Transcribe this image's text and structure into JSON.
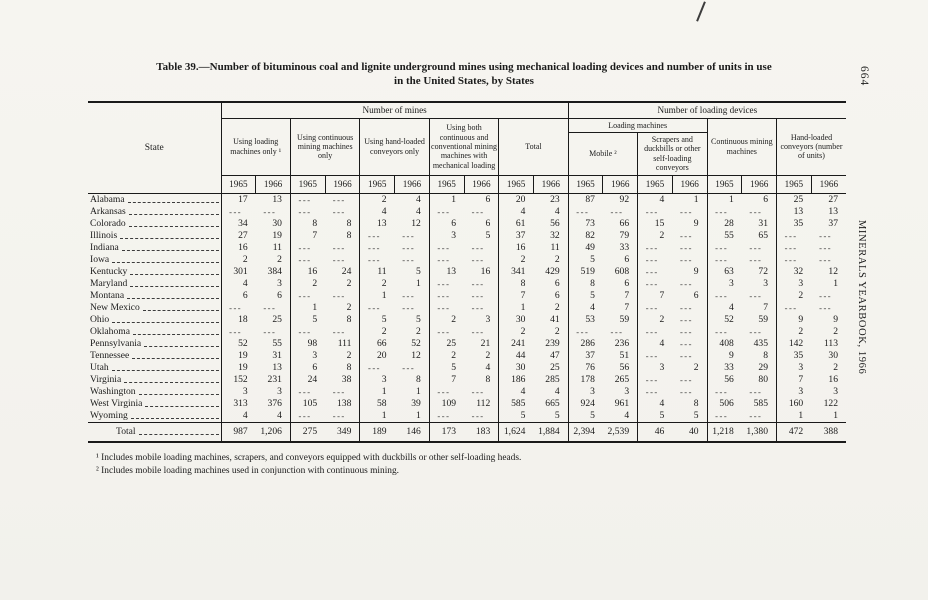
{
  "page": {
    "side_page_number": "664",
    "side_title": "MINERALS YEARBOOK, 1966"
  },
  "title": {
    "line1": "Table 39.—Number of bituminous coal and lignite underground mines using mechanical loading devices and number of units in use",
    "line2": "in the United States, by States"
  },
  "table": {
    "group_headers": [
      "Number of mines",
      "Number of loading devices"
    ],
    "col_headers": {
      "state": "State",
      "mines": [
        "Using loading machines only ¹",
        "Using continuous mining machines only",
        "Using hand-loaded conveyors only",
        "Using both continuous and conventional mining machines with mechanical loading",
        "Total"
      ],
      "loading_machines_group": "Loading machines",
      "loading_machines": [
        "Mobile ²",
        "Scrapers and duckbills or other self-loading conveyors"
      ],
      "continuous": "Continuous mining machines",
      "hand_loaded": "Hand-loaded conveyors (number of units)"
    },
    "years": [
      "1965",
      "1966",
      "1965",
      "1966",
      "1965",
      "1966",
      "1965",
      "1966",
      "1965",
      "1966",
      "1965",
      "1966",
      "1965",
      "1966",
      "1965",
      "1966",
      "1965",
      "1966"
    ],
    "rows": [
      {
        "state": "Alabama",
        "values": [
          "17",
          "13",
          "---",
          "---",
          "2",
          "4",
          "1",
          "6",
          "20",
          "23",
          "87",
          "92",
          "4",
          "1",
          "1",
          "6",
          "25",
          "27"
        ]
      },
      {
        "state": "Arkansas",
        "values": [
          "---",
          "---",
          "---",
          "---",
          "4",
          "4",
          "---",
          "---",
          "4",
          "4",
          "---",
          "---",
          "---",
          "---",
          "---",
          "---",
          "13",
          "13"
        ]
      },
      {
        "state": "Colorado",
        "values": [
          "34",
          "30",
          "8",
          "8",
          "13",
          "12",
          "6",
          "6",
          "61",
          "56",
          "73",
          "66",
          "15",
          "9",
          "28",
          "31",
          "35",
          "37"
        ]
      },
      {
        "state": "Illinois",
        "values": [
          "27",
          "19",
          "7",
          "8",
          "---",
          "---",
          "3",
          "5",
          "37",
          "32",
          "82",
          "79",
          "2",
          "---",
          "55",
          "65",
          "---",
          "---"
        ]
      },
      {
        "state": "Indiana",
        "values": [
          "16",
          "11",
          "---",
          "---",
          "---",
          "---",
          "---",
          "---",
          "16",
          "11",
          "49",
          "33",
          "---",
          "---",
          "---",
          "---",
          "---",
          "---"
        ]
      },
      {
        "state": "Iowa",
        "values": [
          "2",
          "2",
          "---",
          "---",
          "---",
          "---",
          "---",
          "---",
          "2",
          "2",
          "5",
          "6",
          "---",
          "---",
          "---",
          "---",
          "---",
          "---"
        ]
      },
      {
        "state": "Kentucky",
        "values": [
          "301",
          "384",
          "16",
          "24",
          "11",
          "5",
          "13",
          "16",
          "341",
          "429",
          "519",
          "608",
          "---",
          "9",
          "63",
          "72",
          "32",
          "12"
        ]
      },
      {
        "state": "Maryland",
        "values": [
          "4",
          "3",
          "2",
          "2",
          "2",
          "1",
          "---",
          "---",
          "8",
          "6",
          "8",
          "6",
          "---",
          "---",
          "3",
          "3",
          "3",
          "1"
        ]
      },
      {
        "state": "Montana",
        "values": [
          "6",
          "6",
          "---",
          "---",
          "1",
          "---",
          "---",
          "---",
          "7",
          "6",
          "5",
          "7",
          "7",
          "6",
          "---",
          "---",
          "2",
          "---"
        ]
      },
      {
        "state": "New Mexico",
        "values": [
          "---",
          "---",
          "1",
          "2",
          "---",
          "---",
          "---",
          "---",
          "1",
          "2",
          "4",
          "7",
          "---",
          "---",
          "4",
          "7",
          "---",
          "---"
        ]
      },
      {
        "state": "Ohio",
        "values": [
          "18",
          "25",
          "5",
          "8",
          "5",
          "5",
          "2",
          "3",
          "30",
          "41",
          "53",
          "59",
          "2",
          "---",
          "52",
          "59",
          "9",
          "9"
        ]
      },
      {
        "state": "Oklahoma",
        "values": [
          "---",
          "---",
          "---",
          "---",
          "2",
          "2",
          "---",
          "---",
          "2",
          "2",
          "---",
          "---",
          "---",
          "---",
          "---",
          "---",
          "2",
          "2"
        ]
      },
      {
        "state": "Pennsylvania",
        "values": [
          "52",
          "55",
          "98",
          "111",
          "66",
          "52",
          "25",
          "21",
          "241",
          "239",
          "286",
          "236",
          "4",
          "---",
          "408",
          "435",
          "142",
          "113"
        ]
      },
      {
        "state": "Tennessee",
        "values": [
          "19",
          "31",
          "3",
          "2",
          "20",
          "12",
          "2",
          "2",
          "44",
          "47",
          "37",
          "51",
          "---",
          "---",
          "9",
          "8",
          "35",
          "30"
        ]
      },
      {
        "state": "Utah",
        "values": [
          "19",
          "13",
          "6",
          "8",
          "---",
          "---",
          "5",
          "4",
          "30",
          "25",
          "76",
          "56",
          "3",
          "2",
          "33",
          "29",
          "3",
          "2"
        ]
      },
      {
        "state": "Virginia",
        "values": [
          "152",
          "231",
          "24",
          "38",
          "3",
          "8",
          "7",
          "8",
          "186",
          "285",
          "178",
          "265",
          "---",
          "---",
          "56",
          "80",
          "7",
          "16"
        ]
      },
      {
        "state": "Washington",
        "values": [
          "3",
          "3",
          "---",
          "---",
          "1",
          "1",
          "---",
          "---",
          "4",
          "4",
          "3",
          "3",
          "---",
          "---",
          "---",
          "---",
          "3",
          "3"
        ]
      },
      {
        "state": "West Virginia",
        "values": [
          "313",
          "376",
          "105",
          "138",
          "58",
          "39",
          "109",
          "112",
          "585",
          "665",
          "924",
          "961",
          "4",
          "8",
          "506",
          "585",
          "160",
          "122"
        ]
      },
      {
        "state": "Wyoming",
        "values": [
          "4",
          "4",
          "---",
          "---",
          "1",
          "1",
          "---",
          "---",
          "5",
          "5",
          "5",
          "4",
          "5",
          "5",
          "---",
          "---",
          "1",
          "1"
        ]
      }
    ],
    "total": {
      "label": "Total",
      "values": [
        "987",
        "1,206",
        "275",
        "349",
        "189",
        "146",
        "173",
        "183",
        "1,624",
        "1,884",
        "2,394",
        "2,539",
        "46",
        "40",
        "1,218",
        "1,380",
        "472",
        "388"
      ]
    }
  },
  "footnotes": [
    "¹ Includes mobile loading machines, scrapers, and conveyors equipped with duckbills or other self-loading heads.",
    "² Includes mobile loading machines used in conjunction with continuous mining."
  ]
}
